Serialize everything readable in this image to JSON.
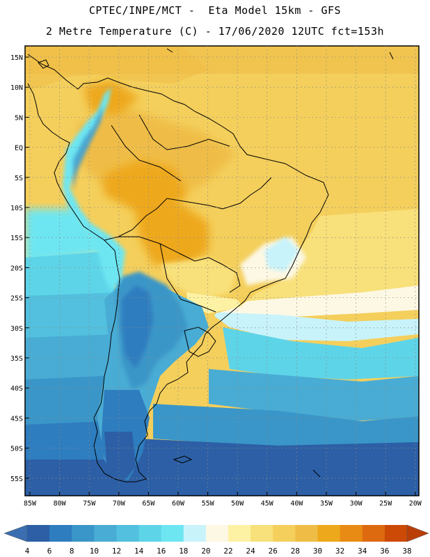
{
  "title": "CPTEC/INPE/MCT -  Eta Model 15km - GFS",
  "subtitle": "2 Metre Temperature (C) - 17/06/2020 12UTC fct=153h",
  "lat_labels": [
    "15N",
    "10N",
    "5N",
    "EQ",
    "5S",
    "10S",
    "15S",
    "20S",
    "25S",
    "30S",
    "35S",
    "40S",
    "45S",
    "50S",
    "55S"
  ],
  "lon_labels": [
    "85W",
    "80W",
    "75W",
    "70W",
    "65W",
    "60W",
    "55W",
    "50W",
    "45W",
    "40W",
    "35W",
    "30W",
    "25W",
    "20W"
  ],
  "colorbar": {
    "values": [
      "4",
      "6",
      "8",
      "10",
      "12",
      "14",
      "16",
      "18",
      "20",
      "22",
      "24",
      "26",
      "28",
      "30",
      "32",
      "34",
      "36",
      "38"
    ],
    "colors": [
      "#2c5fa5",
      "#2e7dbf",
      "#3a96c8",
      "#49acd4",
      "#52c0de",
      "#5ed4e8",
      "#6de6f2",
      "#c8f3fb",
      "#fdf8e4",
      "#fdf2a4",
      "#f8e07a",
      "#f4cf5c",
      "#efbd46",
      "#eea81c",
      "#e88b14",
      "#de6a10",
      "#cc4a06"
    ],
    "left_arrow_color": "#3a6eb0",
    "right_arrow_color": "#b93e08"
  }
}
